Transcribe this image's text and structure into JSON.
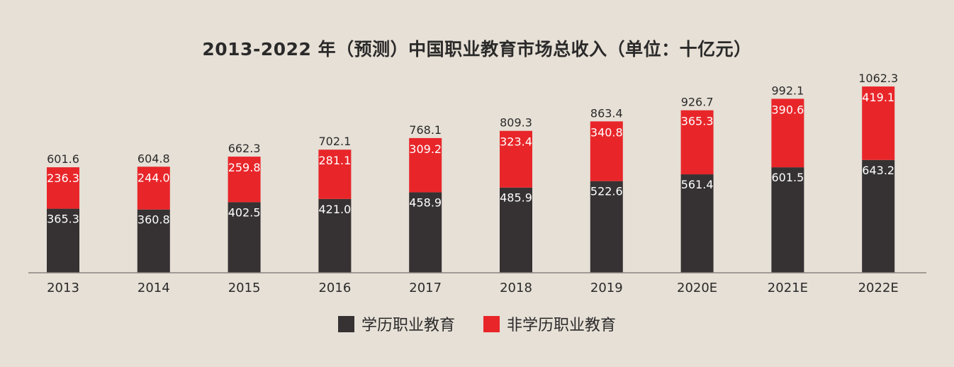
{
  "chart_data": {
    "type": "bar",
    "stacked": true,
    "title": "2013-2022 年（预测）中国职业教育市场总收入（单位：十亿元）",
    "categories": [
      "2013",
      "2014",
      "2015",
      "2016",
      "2017",
      "2018",
      "2019",
      "2020E",
      "2021E",
      "2022E"
    ],
    "series": [
      {
        "name": "学历职业教育",
        "color": "#363233",
        "values": [
          365.3,
          360.8,
          402.5,
          421.0,
          458.9,
          485.9,
          522.6,
          561.4,
          601.5,
          643.2
        ]
      },
      {
        "name": "非学历职业教育",
        "color": "#e8262a",
        "values": [
          236.3,
          244.0,
          259.8,
          281.1,
          309.2,
          323.4,
          340.8,
          365.3,
          390.6,
          419.1
        ]
      }
    ],
    "totals": [
      601.6,
      604.8,
      662.3,
      702.1,
      768.1,
      809.3,
      863.4,
      926.7,
      992.1,
      1062.3
    ],
    "ylim": [
      0,
      1100
    ],
    "grid": false,
    "legend_position": "bottom-center",
    "xlabel": "",
    "ylabel": ""
  }
}
